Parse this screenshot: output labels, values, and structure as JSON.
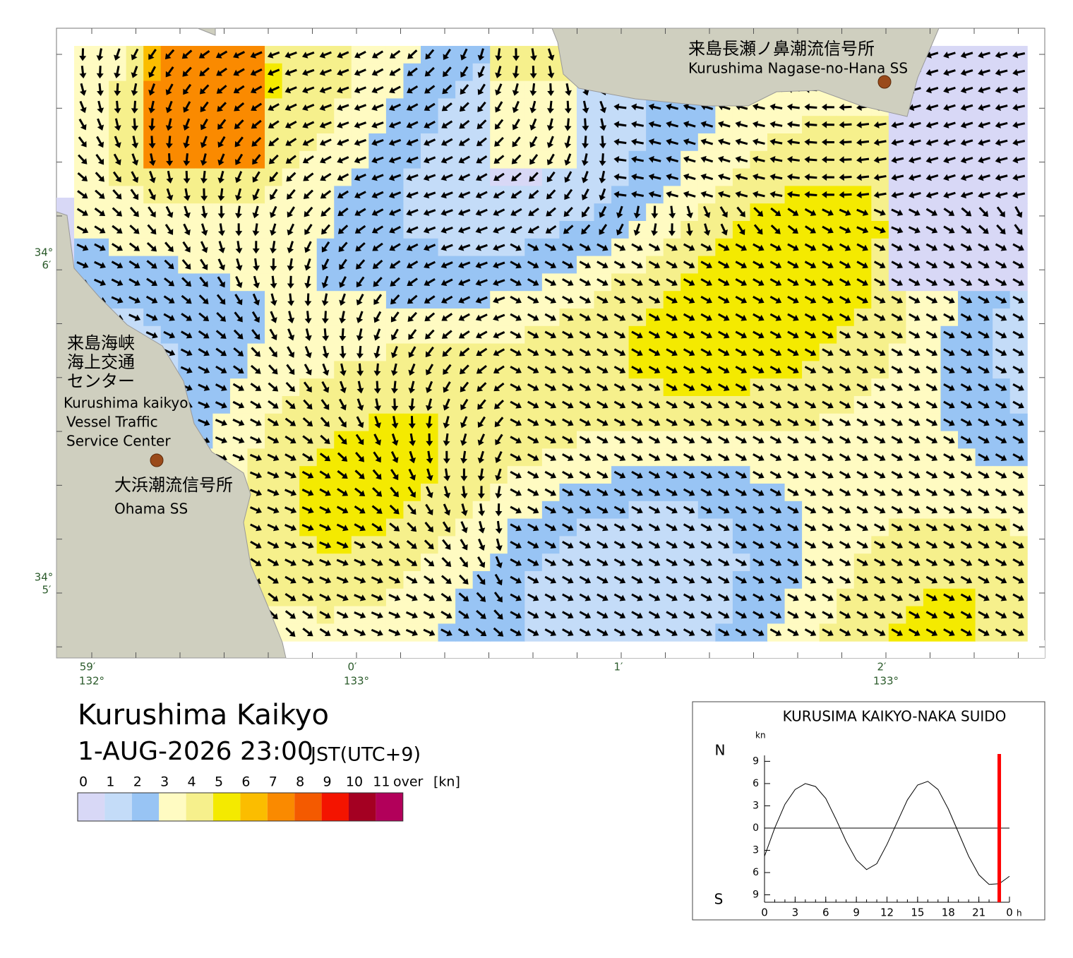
{
  "map": {
    "stations": [
      {
        "name_ja": "来島長瀬ノ鼻潮流信号所",
        "name_en": "Kurushima Nagase-no-Hana SS"
      },
      {
        "name_ja": "大浜潮流信号所",
        "name_en": "Ohama SS"
      }
    ],
    "vts": {
      "lines_ja": [
        "来島海峡",
        "海上交通",
        "センター"
      ],
      "lines_en": [
        "Kurushima kaikyo",
        "Vessel Traffic",
        "Service Center"
      ]
    },
    "lat_labels": [
      {
        "deg": "34°",
        "min": "6′"
      },
      {
        "deg": "34°",
        "min": "5′"
      }
    ],
    "lon_labels": [
      {
        "min": "59′",
        "deg": "132°"
      },
      {
        "min": "0′",
        "deg": "133°"
      },
      {
        "min": "1′"
      },
      {
        "min": "2′",
        "deg": "133°"
      }
    ]
  },
  "title": "Kurushima Kaikyo",
  "datetime": "1-AUG-2026 23:00",
  "timezone": "JST(UTC+9)",
  "colorbar": {
    "ticks": [
      0,
      1,
      2,
      3,
      4,
      5,
      6,
      7,
      8,
      9,
      10,
      11
    ],
    "over": "over",
    "unit": "[kn]",
    "colors": [
      "#d8d8f6",
      "#c4dcf8",
      "#98c4f4",
      "#fffbc2",
      "#f6f08c",
      "#f4ea00",
      "#fbbd00",
      "#fa8a00",
      "#f45a00",
      "#f41400",
      "#a40022",
      "#b2005a"
    ]
  },
  "chart_data": {
    "type": "line",
    "title": "KURUSIMA KAIKYO-NAKA SUIDO",
    "y_unit": "kn",
    "y_top": "N",
    "y_bottom": "S",
    "x_unit": "h",
    "x": [
      0,
      1,
      2,
      3,
      4,
      5,
      6,
      7,
      8,
      9,
      10,
      11,
      12,
      13,
      14,
      15,
      16,
      17,
      18,
      19,
      20,
      21,
      22,
      23,
      24
    ],
    "values": [
      -3.8,
      0,
      3.2,
      5.2,
      6,
      5.6,
      4,
      1.2,
      -1.8,
      -4.3,
      -5.6,
      -4.8,
      -2.2,
      0.8,
      3.8,
      5.8,
      6.3,
      5.2,
      2.6,
      -0.6,
      -3.8,
      -6.3,
      -7.6,
      -7.5,
      -6.5
    ],
    "color": "#000000",
    "xlim": [
      0,
      24
    ],
    "ylim": [
      -10,
      9.8
    ],
    "xticks": [
      0,
      3,
      6,
      9,
      12,
      15,
      18,
      21,
      {
        "value": 24,
        "label": "0"
      }
    ],
    "yticks": [
      {
        "value": 9,
        "label": "9"
      },
      {
        "value": 6,
        "label": "6"
      },
      {
        "value": 3,
        "label": "3"
      },
      0,
      {
        "value": -3,
        "label": "3"
      },
      {
        "value": -6,
        "label": "6"
      },
      {
        "value": -9,
        "label": "9"
      }
    ],
    "marker": {
      "x": 23,
      "color": "#ff0000"
    }
  }
}
